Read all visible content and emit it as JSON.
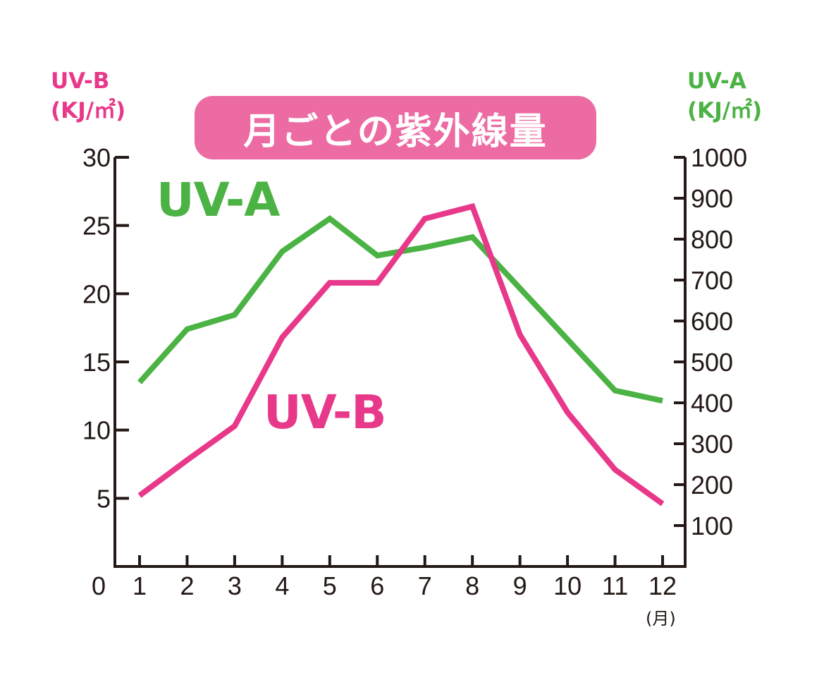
{
  "chart_data": {
    "type": "line",
    "title": "月ごとの紫外線量",
    "x": [
      1,
      2,
      3,
      4,
      5,
      6,
      7,
      8,
      9,
      10,
      11,
      12
    ],
    "x_ticks": [
      "1",
      "2",
      "3",
      "4",
      "5",
      "6",
      "7",
      "8",
      "9",
      "10",
      "11",
      "12"
    ],
    "x_unit": "(月)",
    "origin_label": "0",
    "y_left": {
      "label_line1": "UV-B",
      "label_line2": "(KJ/㎡)",
      "range": [
        0,
        30
      ],
      "ticks": [
        "5",
        "10",
        "15",
        "20",
        "25",
        "30"
      ],
      "tick_values": [
        5,
        10,
        15,
        20,
        25,
        30
      ]
    },
    "y_right": {
      "label_line1": "UV-A",
      "label_line2": "(KJ/㎡)",
      "range": [
        0,
        1000
      ],
      "ticks": [
        "100",
        "200",
        "300",
        "400",
        "500",
        "600",
        "700",
        "800",
        "900",
        "1000"
      ],
      "tick_values": [
        100,
        200,
        300,
        400,
        500,
        600,
        700,
        800,
        900,
        1000
      ]
    },
    "series": [
      {
        "name": "UV-A",
        "axis": "right",
        "color": "#4bb244",
        "values": [
          450,
          580,
          615,
          770,
          850,
          760,
          780,
          805,
          680,
          555,
          430,
          405
        ]
      },
      {
        "name": "UV-B",
        "axis": "left",
        "color": "#e8388a",
        "values": [
          5.2,
          7.8,
          10.3,
          16.8,
          20.8,
          20.8,
          25.5,
          26.4,
          17.0,
          11.3,
          7.1,
          4.6
        ]
      }
    ],
    "grid": false,
    "legend": "in-plot labels"
  },
  "colors": {
    "uvb": "#e8388a",
    "uva": "#4bb244",
    "title_bg": "#ec6ba3",
    "axis": "#231815"
  }
}
